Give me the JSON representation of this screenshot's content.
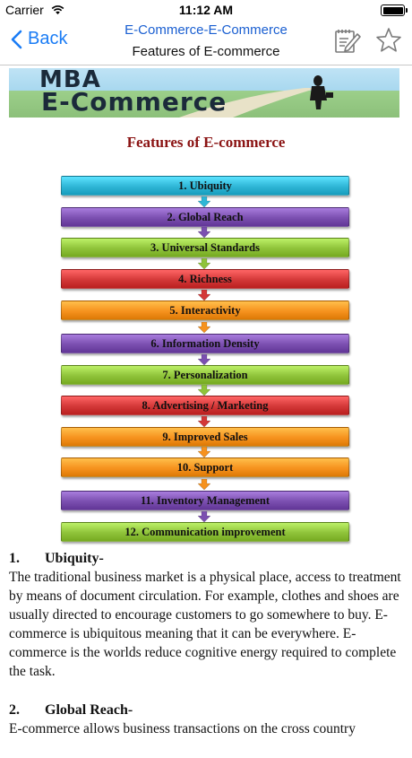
{
  "status": {
    "carrier": "Carrier",
    "time": "11:12 AM"
  },
  "nav": {
    "back_label": "Back",
    "title": "E-Commerce-E-Commerce",
    "subtitle": "Features of E-commerce"
  },
  "banner": {
    "line1": "MBA",
    "line2": "E-Commerce"
  },
  "doc_title": "Features of E-commerce",
  "features": [
    {
      "label": "1. Ubiquity",
      "color": "#2fb6d6"
    },
    {
      "label": "2. Global Reach",
      "color": "#7b4fb0"
    },
    {
      "label": "3. Universal Standards",
      "color": "#8fc33a"
    },
    {
      "label": "4. Richness",
      "color": "#d33838"
    },
    {
      "label": "5. Interactivity",
      "color": "#f6921e"
    },
    {
      "label": "6. Information Density",
      "color": "#7b4fb0"
    },
    {
      "label": "7. Personalization",
      "color": "#8fc33a"
    },
    {
      "label": "8. Advertising / Marketing",
      "color": "#d33838"
    },
    {
      "label": "9. Improved Sales",
      "color": "#f6921e"
    },
    {
      "label": "10. Support",
      "color": "#f6921e"
    },
    {
      "label": "11. Inventory Management",
      "color": "#7b4fb0"
    },
    {
      "label": "12. Communication improvement",
      "color": "#8fc33a"
    }
  ],
  "sections": [
    {
      "number": "1.",
      "heading": "Ubiquity-",
      "text": "The traditional business market is a physical place, access to treatment by means of document circulation. For example, clothes and shoes are usually directed to encourage customers to go somewhere to buy. E-commerce is ubiquitous meaning that it can be everywhere. E-commerce is the worlds reduce cognitive energy required to complete the task."
    },
    {
      "number": "2.",
      "heading": "Global Reach-",
      "text": "E-commerce allows business transactions on the cross country"
    }
  ]
}
